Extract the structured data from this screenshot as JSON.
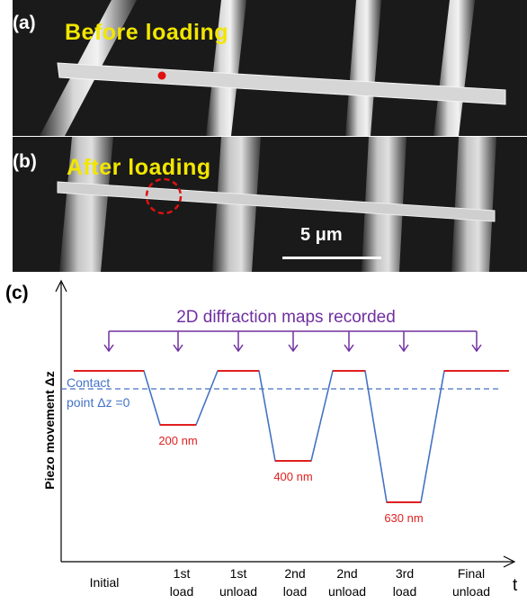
{
  "panel_a": {
    "label": "(a)",
    "title": "Before  loading"
  },
  "panel_b": {
    "label": "(b)",
    "title": "After  loading",
    "scale_bar": "5 μm"
  },
  "panel_c": {
    "label": "(c)",
    "annotation": "2D diffraction maps recorded",
    "contact_line1": "Contact",
    "contact_line2": "point Δz =0",
    "ylabel": "Piezo movement Δz",
    "xlabel_end": "t"
  },
  "chart_data": {
    "type": "line",
    "xlabel": "t",
    "ylabel": "Piezo movement Δz",
    "categories": [
      [
        "Initial"
      ],
      [
        "1st",
        "load"
      ],
      [
        "1st",
        "unload"
      ],
      [
        "2nd",
        "load"
      ],
      [
        "2nd",
        "unload"
      ],
      [
        "3rd",
        "load"
      ],
      [
        "Final",
        "unload"
      ]
    ],
    "steps": [
      {
        "state": "Initial",
        "dz_nm": null,
        "label": ""
      },
      {
        "state": "1st load",
        "dz_nm": -200,
        "label": "200 nm"
      },
      {
        "state": "1st unload",
        "dz_nm": null,
        "label": ""
      },
      {
        "state": "2nd load",
        "dz_nm": -400,
        "label": "400 nm"
      },
      {
        "state": "2nd unload",
        "dz_nm": null,
        "label": ""
      },
      {
        "state": "3rd load",
        "dz_nm": -630,
        "label": "630 nm"
      },
      {
        "state": "Final unload",
        "dz_nm": null,
        "label": ""
      }
    ],
    "contact_point_dz": 0,
    "colors": {
      "profile": "#4472c4",
      "hold": "#e02020",
      "arrows": "#7030a0",
      "contact": "#4472c4",
      "depth_labels": "#e02020"
    }
  }
}
